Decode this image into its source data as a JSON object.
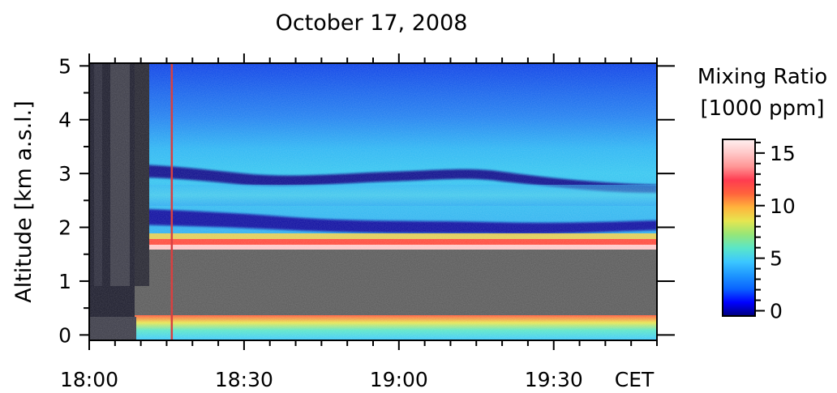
{
  "chart_data": {
    "type": "heatmap",
    "title": "October 17, 2008",
    "ylabel": "Altitude [km a.s.l.]",
    "xlabel": "CET",
    "x_ticks": [
      "18:00",
      "18:30",
      "19:00",
      "19:30"
    ],
    "x_range": [
      "18:00",
      "19:50"
    ],
    "y_ticks": [
      0,
      1,
      2,
      3,
      4,
      5
    ],
    "ylim": [
      -0.1,
      5.05
    ],
    "colorbar": {
      "title_line1": "Mixing Ratio",
      "title_line2": "[1000 ppm]",
      "ticks": [
        0,
        5,
        10,
        15
      ],
      "range": [
        -0.5,
        16.3
      ],
      "colormap": [
        "#00007f",
        "#0000ff",
        "#0a64ff",
        "#1e96ff",
        "#3cc8ff",
        "#5ae6c8",
        "#96e678",
        "#e6e650",
        "#ffb43c",
        "#ff643c",
        "#ff3c50",
        "#ff9696",
        "#ffc8c8",
        "#fff0f0"
      ]
    },
    "marker_line": {
      "time": "18:16",
      "color": "#d94040"
    },
    "no_data_color": "#595959",
    "features": [
      {
        "name": "dry layer upper",
        "altitude_start_km": 3.05,
        "altitude_end_km": 2.75,
        "time_start": "18:00",
        "time_end": "19:50",
        "mixing_ratio": 0.5
      },
      {
        "name": "dry layer lower",
        "altitude_start_km": 2.2,
        "altitude_end_km": 2.05,
        "time_start": "18:00",
        "time_end": "19:50",
        "mixing_ratio": 0.5
      },
      {
        "name": "moist layer top",
        "altitude_km": 1.7,
        "mixing_ratio": 12
      },
      {
        "name": "no data region",
        "altitude_range_km": [
          0.4,
          1.6
        ]
      },
      {
        "name": "near-ground moist layer",
        "altitude_km": 0.4,
        "mixing_ratio": 11
      }
    ]
  }
}
